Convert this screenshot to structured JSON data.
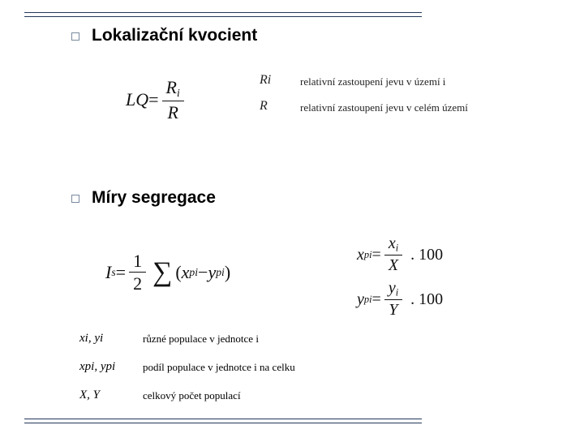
{
  "colors": {
    "frame": "#23375a",
    "bullet_border": "#7a8aa0",
    "text": "#111111",
    "bg": "#ffffff"
  },
  "typography": {
    "heading_fontsize": 21,
    "heading_weight": "bold",
    "formula_fontsize": 22,
    "desc_fontsize": 13
  },
  "headings": {
    "lq": "Lokalizační kvocient",
    "seg": "Míry segregace"
  },
  "lq": {
    "lhs": "LQ",
    "eq": " = ",
    "num": "R",
    "num_sub": "i",
    "den": "R",
    "desc1_sym": "R",
    "desc1_sub": "i",
    "desc1_txt": "relativní zastoupení jevu v území i",
    "desc2_sym": "R",
    "desc2_txt": "relativní zastoupení jevu v celém území"
  },
  "is": {
    "lhs": "I",
    "lhs_sub": "s",
    "eq": " = ",
    "half_num": "1",
    "half_den": "2",
    "sigma": "∑",
    "open": "(",
    "x": "x",
    "x_sub": "pi",
    "minus": " − ",
    "y": "y",
    "y_sub": "pi",
    "close": ")"
  },
  "xpi": {
    "lhs": "x",
    "lhs_sub": "pi",
    "eq": " = ",
    "num": "x",
    "num_sub": "i",
    "den": "X",
    "tail": " . 100"
  },
  "ypi": {
    "lhs": "y",
    "lhs_sub": "pi",
    "eq": " = ",
    "num": "y",
    "num_sub": "i",
    "den": "Y",
    "tail": " . 100"
  },
  "legend": {
    "l1_sym": "x_i, y_i",
    "l1_txt": "různé populace v jednotce i",
    "l2_sym": "x_pi, y_pi",
    "l2_txt": "podíl populace v jednotce i na celku",
    "l3_sym": "X, Y",
    "l3_txt": "celkový počet populací"
  }
}
